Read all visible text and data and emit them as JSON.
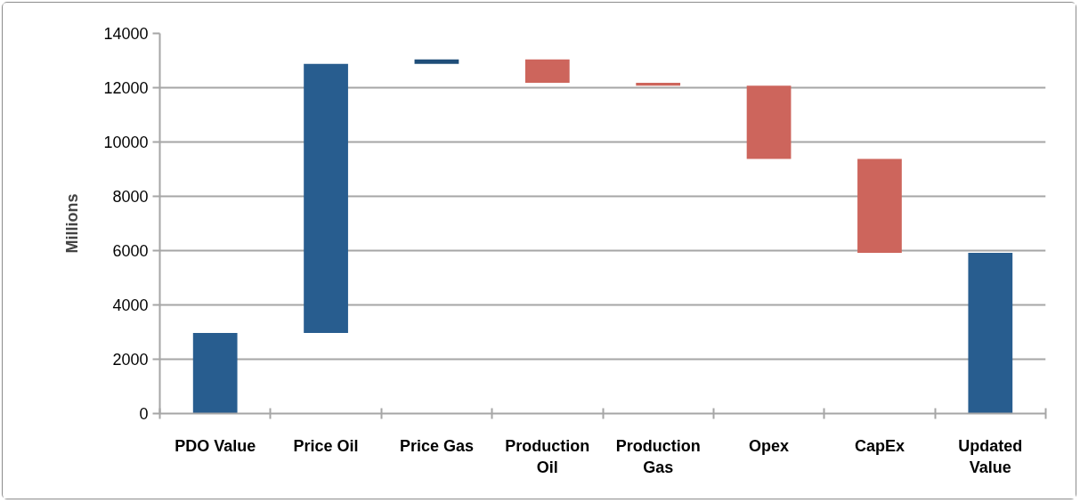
{
  "chart_data": {
    "type": "bar",
    "ylabel": "Millions",
    "categories": [
      "PDO Value",
      "Price Oil",
      "Price Gas",
      "Production Oil",
      "Production Gas",
      "Opex",
      "CapEx",
      "Updated Value"
    ],
    "values": [
      2970,
      9910,
      160,
      -860,
      -110,
      -2690,
      -3460,
      5920
    ],
    "base": [
      0,
      2970,
      12880,
      13040,
      12180,
      12070,
      9380,
      0
    ],
    "colors": [
      "#285d8f",
      "#285d8f",
      "#1f4e79",
      "#cd655c",
      "#cd655c",
      "#cd655c",
      "#cd655c",
      "#285d8f"
    ],
    "ylim": [
      0,
      14000
    ],
    "yticks": [
      0,
      2000,
      4000,
      6000,
      8000,
      10000,
      12000,
      14000
    ],
    "grid": "y"
  }
}
